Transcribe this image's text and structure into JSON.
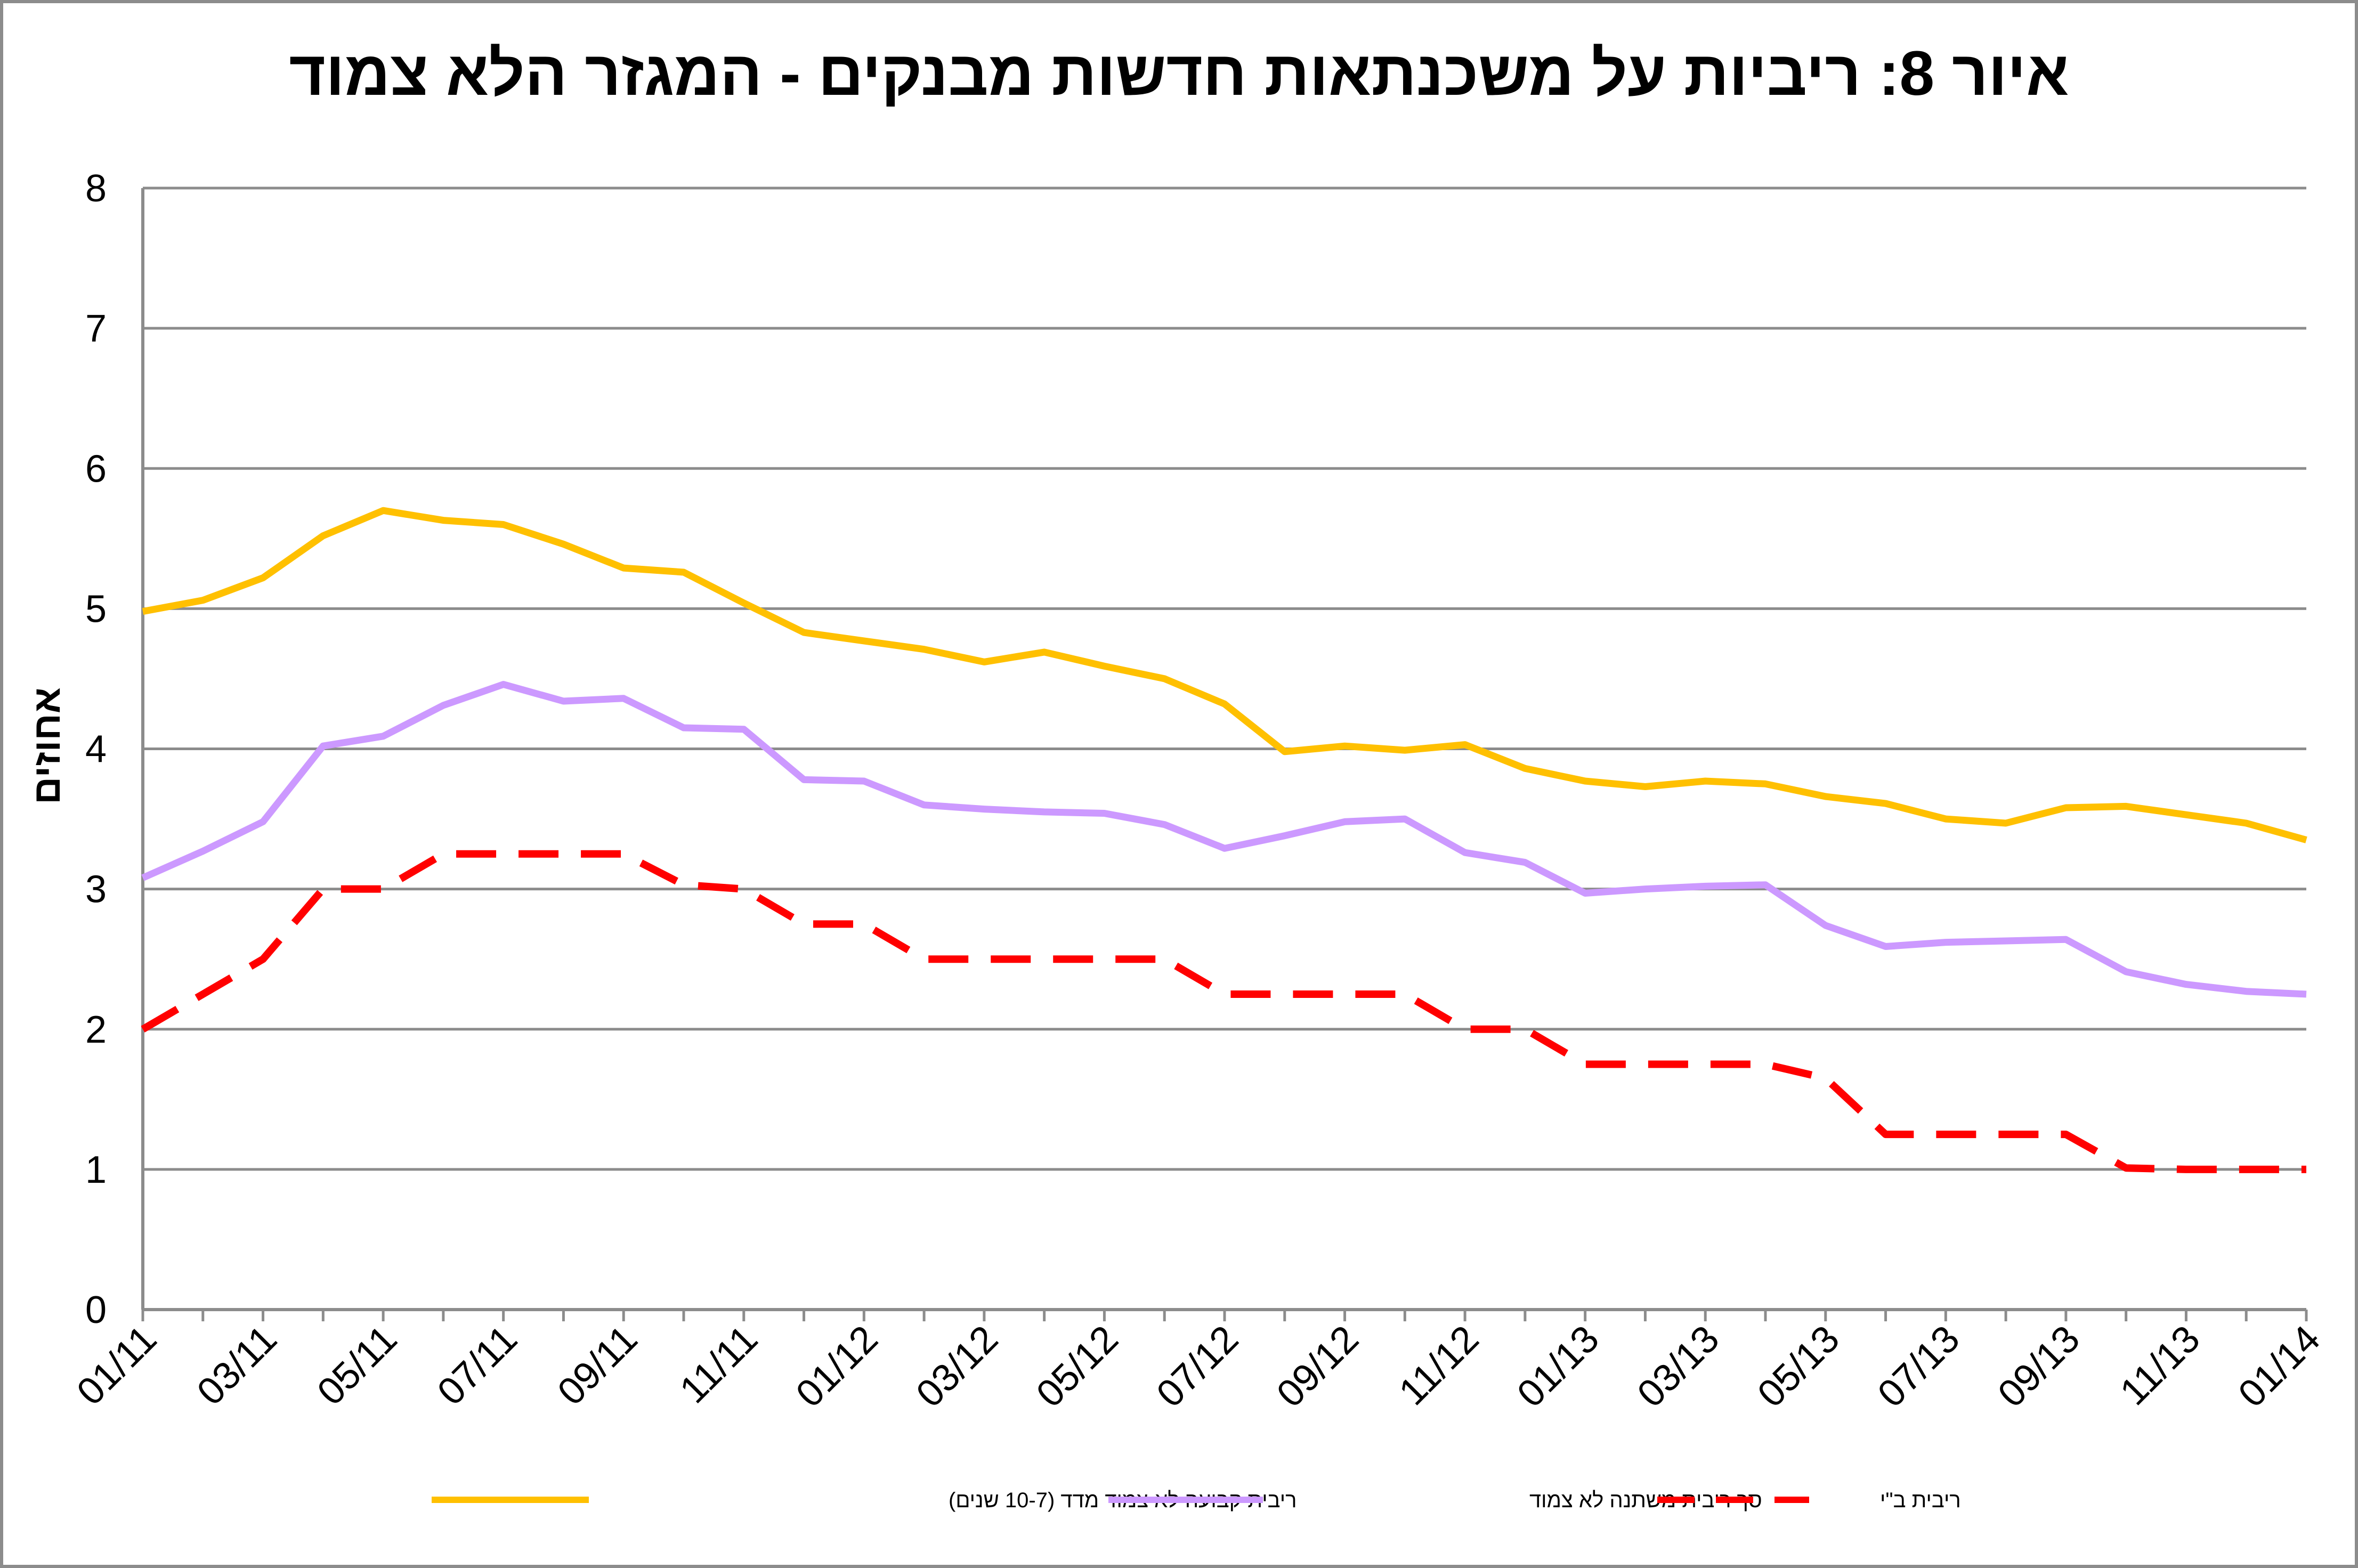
{
  "chart_data": {
    "type": "line",
    "title": "איור 8: ריביות על משכנתאות חדשות מבנקים - המגזר הלא צמוד",
    "ylabel": "אחוזים",
    "xlabel": "",
    "ylim": [
      0,
      8
    ],
    "yticks": [
      "0",
      "1",
      "2",
      "3",
      "4",
      "5",
      "6",
      "7",
      "8"
    ],
    "grid": true,
    "legend_position": "bottom",
    "x_tick_labels": [
      "01/11",
      "03/11",
      "05/11",
      "07/11",
      "09/11",
      "11/11",
      "01/12",
      "03/12",
      "05/12",
      "07/12",
      "09/12",
      "11/12",
      "01/13",
      "03/13",
      "05/13",
      "07/13",
      "09/13",
      "11/13",
      "01/14"
    ],
    "x": [
      "01/11",
      "02/11",
      "03/11",
      "04/11",
      "05/11",
      "06/11",
      "07/11",
      "08/11",
      "09/11",
      "10/11",
      "11/11",
      "12/11",
      "01/12",
      "02/12",
      "03/12",
      "04/12",
      "05/12",
      "06/12",
      "07/12",
      "08/12",
      "09/12",
      "10/12",
      "11/12",
      "12/12",
      "01/13",
      "02/13",
      "03/13",
      "04/13",
      "05/13",
      "06/13",
      "07/13",
      "08/13",
      "09/13",
      "10/13",
      "11/13",
      "12/13",
      "01/14"
    ],
    "series": [
      {
        "name": "ריבית קבועה לא צמוד מדד (10-7 שנים)",
        "color": "#FFC000",
        "style": "solid",
        "values": [
          4.98,
          5.06,
          5.22,
          5.52,
          5.7,
          5.63,
          5.6,
          5.46,
          5.29,
          5.26,
          5.04,
          4.83,
          4.77,
          4.71,
          4.62,
          4.69,
          4.59,
          4.5,
          4.32,
          3.98,
          4.02,
          3.99,
          4.03,
          3.86,
          3.77,
          3.73,
          3.77,
          3.75,
          3.66,
          3.61,
          3.5,
          3.47,
          3.58,
          3.59,
          3.53,
          3.47,
          3.35
        ]
      },
      {
        "name": "סך ריבית משתנה לא צמוד",
        "color": "#CC99FF",
        "style": "solid",
        "values": [
          3.08,
          3.27,
          3.48,
          4.02,
          4.09,
          4.31,
          4.46,
          4.34,
          4.36,
          4.15,
          4.14,
          3.78,
          3.77,
          3.6,
          3.57,
          3.55,
          3.54,
          3.46,
          3.29,
          3.38,
          3.48,
          3.5,
          3.26,
          3.19,
          2.97,
          3.0,
          3.02,
          3.03,
          2.74,
          2.59,
          2.62,
          2.63,
          2.64,
          2.41,
          2.32,
          2.27,
          2.25
        ]
      },
      {
        "name": "ריבית ב\"י",
        "color": "#FF0000",
        "style": "dashed",
        "values": [
          2.0,
          2.25,
          2.5,
          3.0,
          3.0,
          3.25,
          3.25,
          3.25,
          3.25,
          3.03,
          3.0,
          2.75,
          2.75,
          2.5,
          2.5,
          2.5,
          2.5,
          2.5,
          2.25,
          2.25,
          2.25,
          2.25,
          2.0,
          2.0,
          1.75,
          1.75,
          1.75,
          1.75,
          1.65,
          1.25,
          1.25,
          1.25,
          1.25,
          1.01,
          1.0,
          1.0,
          1.0
        ]
      }
    ]
  }
}
